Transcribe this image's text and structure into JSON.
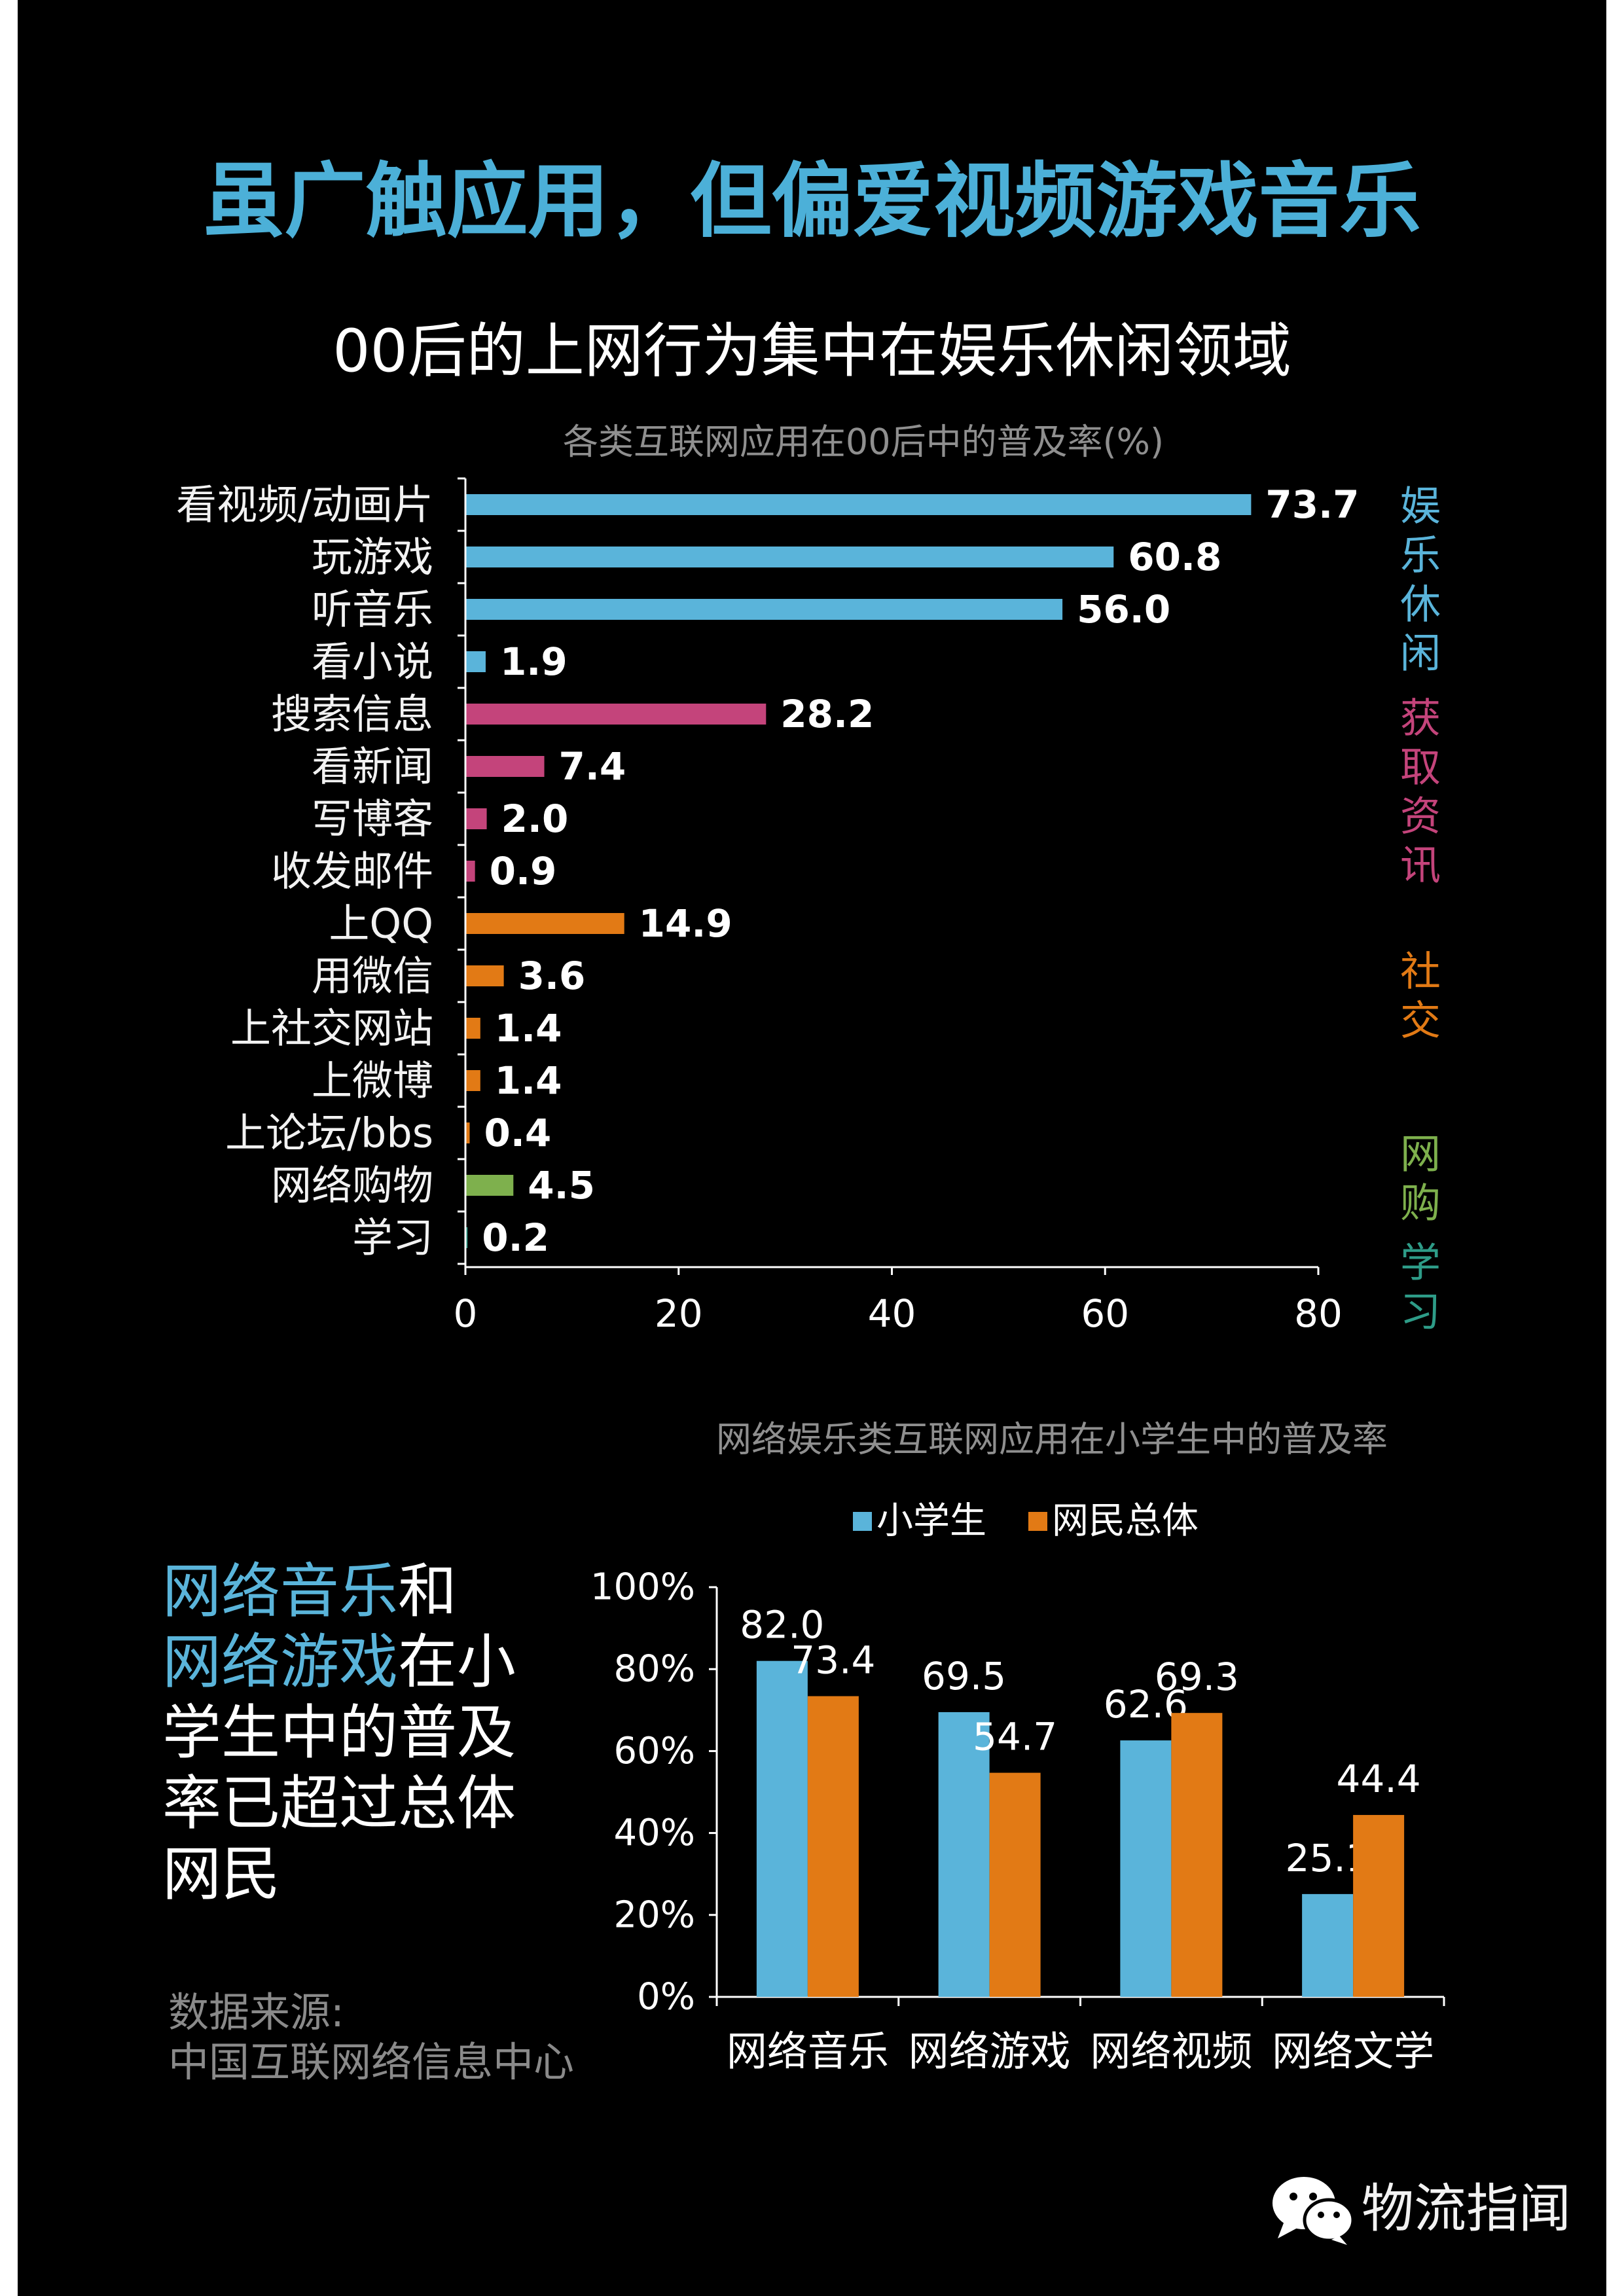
{
  "title": "虽广触应用，但偏爱视频游戏音乐",
  "subtitle": "00后的上网行为集中在娱乐休闲领域",
  "colors": {
    "background": "#000000",
    "title": "#4cb0d8",
    "highlight": "#5ab4da",
    "chart_title": "#8f8f8f",
    "source": "#8a8a8a",
    "text": "#ffffff"
  },
  "chart_data": [
    {
      "type": "bar",
      "orientation": "horizontal",
      "title": "各类互联网应用在00后中的普及率(%)",
      "groups": [
        {
          "label": "娱乐休闲",
          "color": "#5ab4da",
          "categories": [
            "看视频/动画片",
            "玩游戏",
            "听音乐",
            "看小说"
          ],
          "values": [
            73.7,
            60.8,
            56.0,
            1.9
          ]
        },
        {
          "label": "获取资讯",
          "color": "#c4447b",
          "categories": [
            "搜索信息",
            "看新闻",
            "写博客",
            "收发邮件"
          ],
          "values": [
            28.2,
            7.4,
            2.0,
            0.9
          ]
        },
        {
          "label": "社交",
          "color": "#e27a15",
          "categories": [
            "上QQ",
            "用微信",
            "上社交网站",
            "上微博",
            "上论坛/bbs"
          ],
          "values": [
            14.9,
            3.6,
            1.4,
            1.4,
            0.4
          ]
        },
        {
          "label": "网购",
          "color": "#7eb04d",
          "categories": [
            "网络购物"
          ],
          "values": [
            4.5
          ]
        },
        {
          "label": "学习",
          "color": "#2e9c88",
          "categories": [
            "学习"
          ],
          "values": [
            0.2
          ]
        }
      ],
      "xlim": [
        0,
        80
      ],
      "xticks": [
        0,
        20,
        40,
        60,
        80
      ],
      "grid": false
    },
    {
      "type": "bar",
      "title": "网络娱乐类互联网应用在小学生中的普及率",
      "categories": [
        "网络音乐",
        "网络游戏",
        "网络视频",
        "网络文学"
      ],
      "series": [
        {
          "name": "小学生",
          "color": "#5ab4da",
          "values": [
            82.0,
            69.5,
            62.6,
            25.1
          ]
        },
        {
          "name": "网民总体",
          "color": "#e27a15",
          "values": [
            73.4,
            54.7,
            69.3,
            44.4
          ]
        }
      ],
      "ylim": [
        0,
        100
      ],
      "yticks": [
        0,
        20,
        40,
        60,
        80,
        100
      ],
      "yticklabels": [
        "0%",
        "20%",
        "40%",
        "60%",
        "80%",
        "100%"
      ],
      "legend": "top",
      "grid": false
    }
  ],
  "callout": {
    "lines": [
      [
        {
          "text": "网络音乐",
          "highlight": true
        },
        {
          "text": "和",
          "highlight": false
        }
      ],
      [
        {
          "text": "网络游戏",
          "highlight": true
        },
        {
          "text": "在小",
          "highlight": false
        }
      ],
      [
        {
          "text": "学生中的普及",
          "highlight": false
        }
      ],
      [
        {
          "text": "率已超过总体",
          "highlight": false
        }
      ],
      [
        {
          "text": "网民",
          "highlight": false
        }
      ]
    ]
  },
  "source": {
    "label": "数据来源:",
    "name": "中国互联网络信息中心"
  },
  "watermark": {
    "icon": "wechat-icon",
    "text": "物流指闻"
  }
}
